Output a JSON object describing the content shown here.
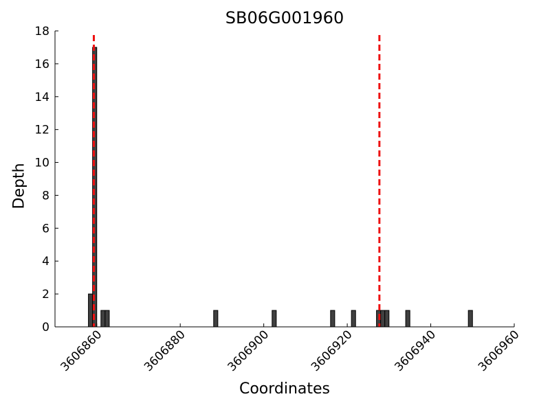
{
  "chart_data": {
    "type": "bar",
    "title": "SB06G001960",
    "xlabel": "Coordinates",
    "ylabel": "Depth",
    "xlim": [
      3606850,
      3606960
    ],
    "ylim": [
      0,
      18
    ],
    "xticks": [
      3606860,
      3606880,
      3606900,
      3606920,
      3606940,
      3606960
    ],
    "yticks": [
      0,
      2,
      4,
      6,
      8,
      10,
      12,
      14,
      16,
      18
    ],
    "bar_color": "#404040",
    "bars": [
      {
        "x": 3606858,
        "y": 2
      },
      {
        "x": 3606859,
        "y": 17
      },
      {
        "x": 3606861,
        "y": 1
      },
      {
        "x": 3606862,
        "y": 1
      },
      {
        "x": 3606888,
        "y": 1
      },
      {
        "x": 3606902,
        "y": 1
      },
      {
        "x": 3606916,
        "y": 1
      },
      {
        "x": 3606921,
        "y": 1
      },
      {
        "x": 3606927,
        "y": 1
      },
      {
        "x": 3606928,
        "y": 1
      },
      {
        "x": 3606929,
        "y": 1
      },
      {
        "x": 3606934,
        "y": 1
      },
      {
        "x": 3606949,
        "y": 1
      }
    ],
    "reference_lines": [
      {
        "x": 3606859.3,
        "color": "#ee1111",
        "style": "dashed"
      },
      {
        "x": 3606927.7,
        "color": "#ee1111",
        "style": "dashed"
      }
    ],
    "grid": false
  }
}
